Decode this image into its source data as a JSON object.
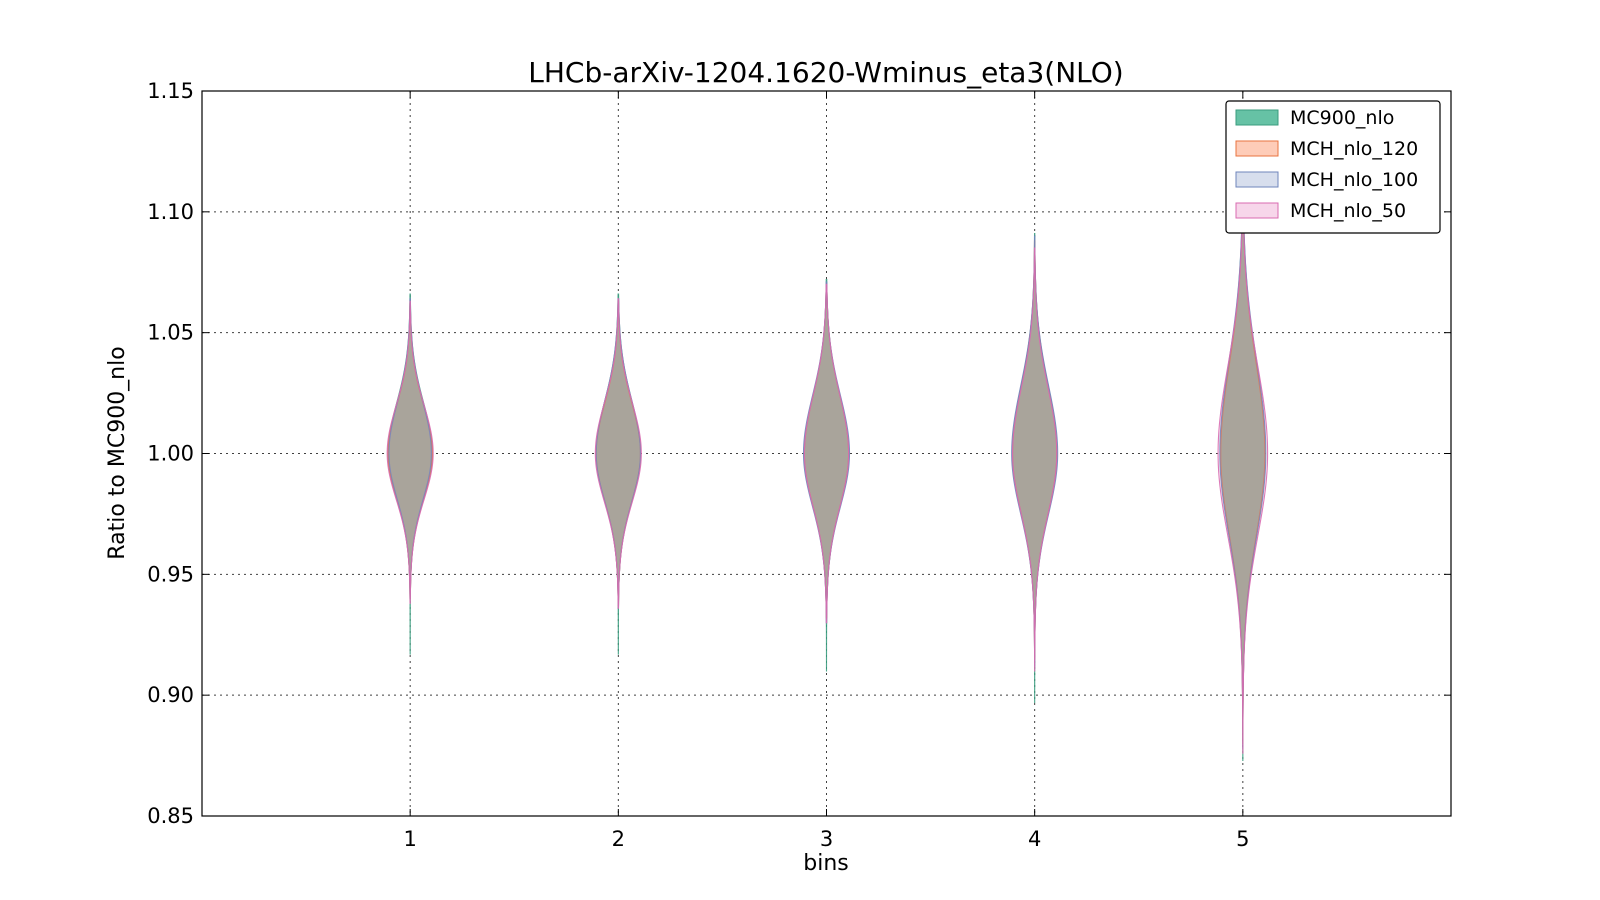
{
  "chart_data": {
    "type": "violin",
    "title": "LHCb-arXiv-1204.1620-Wminus_eta3(NLO)",
    "xlabel": "bins",
    "ylabel": "Ratio to MC900_nlo",
    "xlim": [
      0,
      6
    ],
    "ylim": [
      0.85,
      1.15
    ],
    "x_ticks": [
      "1",
      "2",
      "3",
      "4",
      "5"
    ],
    "y_ticks": [
      "0.85",
      "0.90",
      "0.95",
      "1.00",
      "1.05",
      "1.10",
      "1.15"
    ],
    "grid": true,
    "legend_position": "top-right",
    "series": [
      {
        "name": "MC900_nlo",
        "fill": "#66c2a5",
        "edge": "#3a9c7e",
        "alpha": 1.0,
        "violins": [
          {
            "bin": 1,
            "min": 0.917,
            "max": 1.066,
            "center": 1.0,
            "sigma_up": 0.021,
            "sigma_down": 0.019,
            "width": 0.25
          },
          {
            "bin": 2,
            "min": 0.917,
            "max": 1.066,
            "center": 1.0,
            "sigma_up": 0.022,
            "sigma_down": 0.02,
            "width": 0.25
          },
          {
            "bin": 3,
            "min": 0.91,
            "max": 1.072,
            "center": 1.0,
            "sigma_up": 0.024,
            "sigma_down": 0.022,
            "width": 0.25
          },
          {
            "bin": 4,
            "min": 0.897,
            "max": 1.091,
            "center": 1.0,
            "sigma_up": 0.028,
            "sigma_down": 0.025,
            "width": 0.25
          },
          {
            "bin": 5,
            "min": 0.873,
            "max": 1.13,
            "center": 1.0,
            "sigma_up": 0.038,
            "sigma_down": 0.034,
            "width": 0.25
          }
        ]
      },
      {
        "name": "MCH_nlo_120",
        "fill": "#fc8d62",
        "edge": "#e8733f",
        "alpha": 0.45,
        "violins": [
          {
            "bin": 1,
            "min": 0.94,
            "max": 1.062,
            "center": 1.0,
            "sigma_up": 0.02,
            "sigma_down": 0.019,
            "width": 0.25
          },
          {
            "bin": 2,
            "min": 0.937,
            "max": 1.063,
            "center": 1.0,
            "sigma_up": 0.021,
            "sigma_down": 0.02,
            "width": 0.25
          },
          {
            "bin": 3,
            "min": 0.932,
            "max": 1.069,
            "center": 1.0,
            "sigma_up": 0.024,
            "sigma_down": 0.022,
            "width": 0.25
          },
          {
            "bin": 4,
            "min": 0.915,
            "max": 1.088,
            "center": 1.0,
            "sigma_up": 0.028,
            "sigma_down": 0.025,
            "width": 0.25
          },
          {
            "bin": 5,
            "min": 0.88,
            "max": 1.125,
            "center": 1.0,
            "sigma_up": 0.037,
            "sigma_down": 0.034,
            "width": 0.25
          }
        ]
      },
      {
        "name": "MCH_nlo_100",
        "fill": "#8da0cb",
        "edge": "#6f85bb",
        "alpha": 0.25,
        "violins": [
          {
            "bin": 1,
            "min": 0.94,
            "max": 1.064,
            "center": 1.0,
            "sigma_up": 0.021,
            "sigma_down": 0.019,
            "width": 0.24
          },
          {
            "bin": 2,
            "min": 0.936,
            "max": 1.064,
            "center": 1.0,
            "sigma_up": 0.022,
            "sigma_down": 0.02,
            "width": 0.25
          },
          {
            "bin": 3,
            "min": 0.93,
            "max": 1.071,
            "center": 1.0,
            "sigma_up": 0.024,
            "sigma_down": 0.022,
            "width": 0.26
          },
          {
            "bin": 4,
            "min": 0.912,
            "max": 1.09,
            "center": 1.0,
            "sigma_up": 0.028,
            "sigma_down": 0.025,
            "width": 0.26
          },
          {
            "bin": 5,
            "min": 0.878,
            "max": 1.128,
            "center": 1.0,
            "sigma_up": 0.038,
            "sigma_down": 0.034,
            "width": 0.26
          }
        ]
      },
      {
        "name": "MCH_nlo_50",
        "fill": "#e78ac3",
        "edge": "#d86bb0",
        "alpha": 0.1,
        "violins": [
          {
            "bin": 1,
            "min": 0.938,
            "max": 1.063,
            "center": 1.0,
            "sigma_up": 0.02,
            "sigma_down": 0.019,
            "width": 0.26
          },
          {
            "bin": 2,
            "min": 0.936,
            "max": 1.064,
            "center": 1.0,
            "sigma_up": 0.021,
            "sigma_down": 0.02,
            "width": 0.26
          },
          {
            "bin": 3,
            "min": 0.93,
            "max": 1.07,
            "center": 1.0,
            "sigma_up": 0.024,
            "sigma_down": 0.022,
            "width": 0.25
          },
          {
            "bin": 4,
            "min": 0.91,
            "max": 1.085,
            "center": 1.0,
            "sigma_up": 0.027,
            "sigma_down": 0.025,
            "width": 0.25
          },
          {
            "bin": 5,
            "min": 0.876,
            "max": 1.126,
            "center": 1.0,
            "sigma_up": 0.036,
            "sigma_down": 0.034,
            "width": 0.28
          }
        ]
      }
    ]
  }
}
